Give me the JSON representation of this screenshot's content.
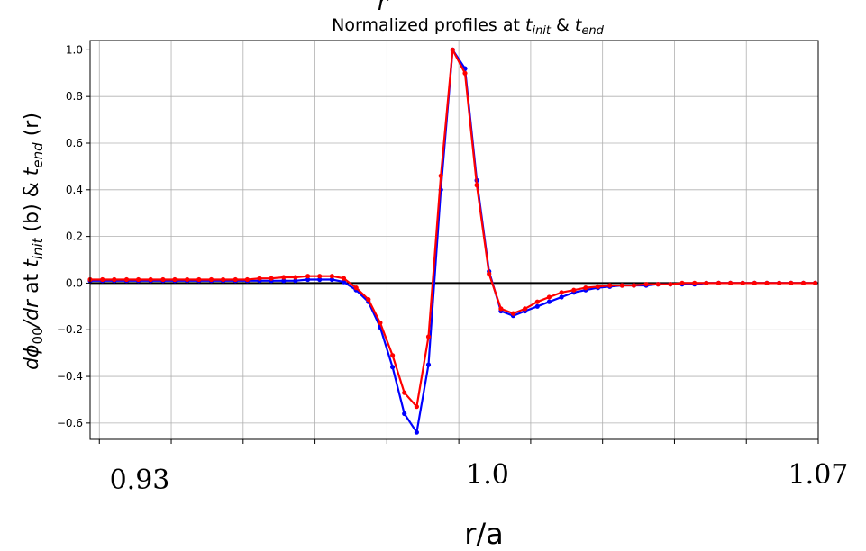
{
  "chart_data": {
    "type": "line",
    "title_base": "Normalized profiles at ",
    "title_t1": "t",
    "title_s1": "init",
    "title_amp": " & ",
    "title_t2": "t",
    "title_s2": "end",
    "cutoff_glyph": "r",
    "ylabel": {
      "d": "d",
      "phi": "ϕ",
      "phi_sub": "00",
      "slash_dr": "/dr",
      "at": " at ",
      "t1": "t",
      "t1_sub": "init",
      "mid": " (b) & ",
      "t2": "t",
      "t2_sub": "end",
      "end": " (r)"
    },
    "xlabel": "r/a",
    "x_tick_labels": [
      "0.93",
      "1.0",
      "1.07"
    ],
    "x_tick_values": [
      0.93,
      1.0,
      1.07
    ],
    "yticks": [
      -0.6,
      -0.4,
      -0.2,
      0.0,
      0.2,
      0.4,
      0.6,
      0.8,
      1.0
    ],
    "ytick_labels": [
      "−0.6",
      "−0.4",
      "−0.2",
      "0.0",
      "0.2",
      "0.4",
      "0.6",
      "0.8",
      "1.0"
    ],
    "xlim": [
      0.9282,
      1.07
    ],
    "ylim": [
      -0.67,
      1.04
    ],
    "x_grid": [
      0.93,
      0.944,
      0.958,
      0.972,
      0.986,
      1.0,
      1.014,
      1.028,
      1.042,
      1.056,
      1.07
    ],
    "grid": true,
    "zero_line": 0.0,
    "series": [
      {
        "color": "#0000ff",
        "x": [
          0.9282,
          0.9306,
          0.9329,
          0.9353,
          0.9376,
          0.94,
          0.9424,
          0.9447,
          0.9471,
          0.9494,
          0.9518,
          0.9541,
          0.9565,
          0.9588,
          0.9612,
          0.9635,
          0.9659,
          0.9682,
          0.9706,
          0.9729,
          0.9753,
          0.9776,
          0.98,
          0.9824,
          0.9847,
          0.9871,
          0.9894,
          0.9918,
          0.9941,
          0.9965,
          0.9988,
          1.0012,
          1.0035,
          1.0059,
          1.0082,
          1.0106,
          1.0129,
          1.0153,
          1.0176,
          1.02,
          1.0224,
          1.0247,
          1.0271,
          1.0294,
          1.0318,
          1.0341,
          1.0365,
          1.0388,
          1.0412,
          1.0435,
          1.0459,
          1.0482,
          1.0506,
          1.0529,
          1.0553,
          1.0576,
          1.06,
          1.0624,
          1.0647,
          1.0671,
          1.0694
        ],
        "y": [
          0.01,
          0.01,
          0.01,
          0.01,
          0.01,
          0.01,
          0.01,
          0.01,
          0.01,
          0.01,
          0.01,
          0.01,
          0.01,
          0.01,
          0.01,
          0.01,
          0.01,
          0.01,
          0.015,
          0.015,
          0.015,
          0.005,
          -0.03,
          -0.08,
          -0.19,
          -0.36,
          -0.56,
          -0.64,
          -0.35,
          0.4,
          1.0,
          0.92,
          0.44,
          0.05,
          -0.12,
          -0.14,
          -0.12,
          -0.1,
          -0.08,
          -0.06,
          -0.04,
          -0.03,
          -0.02,
          -0.015,
          -0.01,
          -0.01,
          -0.01,
          -0.005,
          -0.005,
          -0.005,
          -0.005,
          0.0,
          0.0,
          0.0,
          0.0,
          0.0,
          0.0,
          0.0,
          0.0,
          0.0,
          0.0
        ]
      },
      {
        "color": "#ff0000",
        "x": [
          0.9282,
          0.9306,
          0.9329,
          0.9353,
          0.9376,
          0.94,
          0.9424,
          0.9447,
          0.9471,
          0.9494,
          0.9518,
          0.9541,
          0.9565,
          0.9588,
          0.9612,
          0.9635,
          0.9659,
          0.9682,
          0.9706,
          0.9729,
          0.9753,
          0.9776,
          0.98,
          0.9824,
          0.9847,
          0.9871,
          0.9894,
          0.9918,
          0.9941,
          0.9965,
          0.9988,
          1.0012,
          1.0035,
          1.0059,
          1.0082,
          1.0106,
          1.0129,
          1.0153,
          1.0176,
          1.02,
          1.0224,
          1.0247,
          1.0271,
          1.0294,
          1.0318,
          1.0341,
          1.0365,
          1.0388,
          1.0412,
          1.0435,
          1.0459,
          1.0482,
          1.0506,
          1.0529,
          1.0553,
          1.0576,
          1.06,
          1.0624,
          1.0647,
          1.0671,
          1.0694
        ],
        "y": [
          0.015,
          0.015,
          0.015,
          0.015,
          0.015,
          0.015,
          0.015,
          0.015,
          0.015,
          0.015,
          0.015,
          0.015,
          0.015,
          0.015,
          0.02,
          0.02,
          0.025,
          0.025,
          0.03,
          0.03,
          0.03,
          0.02,
          -0.02,
          -0.07,
          -0.17,
          -0.31,
          -0.47,
          -0.53,
          -0.23,
          0.46,
          1.0,
          0.9,
          0.42,
          0.04,
          -0.11,
          -0.13,
          -0.11,
          -0.08,
          -0.06,
          -0.04,
          -0.03,
          -0.02,
          -0.015,
          -0.01,
          -0.01,
          -0.01,
          -0.005,
          -0.005,
          -0.005,
          0.0,
          0.0,
          0.0,
          0.0,
          0.0,
          0.0,
          0.0,
          0.0,
          0.0,
          0.0,
          0.0,
          0.0
        ]
      }
    ]
  }
}
